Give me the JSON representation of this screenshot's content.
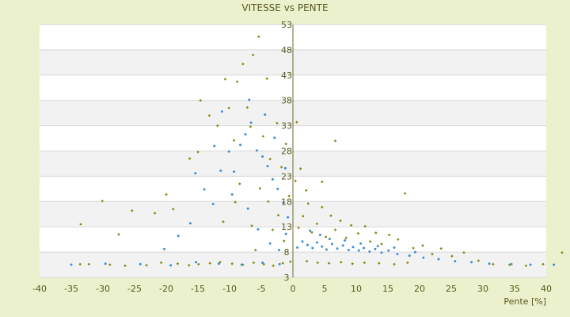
{
  "chart_data": {
    "type": "scatter",
    "title": "VITESSE vs PENTE",
    "xlabel": "Pente [%]",
    "ylabel": "",
    "xlim": [
      -40,
      40
    ],
    "ylim": [
      3,
      53
    ],
    "x_ticks": [
      -40,
      -35,
      -30,
      -25,
      -20,
      -15,
      -10,
      -5,
      0,
      5,
      10,
      15,
      20,
      25,
      30,
      35,
      40
    ],
    "y_ticks": [
      3,
      8,
      13,
      18,
      23,
      28,
      33,
      38,
      43,
      48,
      53
    ],
    "x_tick_labels": [
      "-40",
      "-35",
      "-30",
      "-25",
      "-20",
      "-15",
      "-10",
      "-5",
      "0",
      "5",
      "10",
      "15",
      "20",
      "25",
      "30",
      "35",
      "40"
    ],
    "y_tick_labels": [
      "3",
      "8",
      "13",
      "18",
      "23",
      "28",
      "33",
      "38",
      "43",
      "48",
      "53"
    ],
    "grid": true,
    "legend": "none",
    "series": [
      {
        "color": "#8b8b10",
        "marker": "diamond",
        "points": [
          [
            -33.6,
            5.6
          ],
          [
            -32.2,
            5.6
          ],
          [
            -28.9,
            5.5
          ],
          [
            -26.5,
            5.3
          ],
          [
            -23.1,
            5.4
          ],
          [
            -20.8,
            5.9
          ],
          [
            -18.2,
            5.7
          ],
          [
            -16.4,
            5.4
          ],
          [
            -14.9,
            5.6
          ],
          [
            -13.1,
            5.8
          ],
          [
            -11.5,
            6.0
          ],
          [
            -9.6,
            5.7
          ],
          [
            -7.9,
            5.5
          ],
          [
            -6.2,
            5.9
          ],
          [
            -4.6,
            5.6
          ],
          [
            -3.1,
            5.3
          ],
          [
            -1.6,
            5.8
          ],
          [
            -0.4,
            6.1
          ],
          [
            -33.5,
            13.5
          ],
          [
            -30.1,
            18.1
          ],
          [
            -27.5,
            11.5
          ],
          [
            -25.4,
            16.2
          ],
          [
            -21.8,
            15.7
          ],
          [
            -20.0,
            19.4
          ],
          [
            -18.9,
            16.5
          ],
          [
            -16.3,
            26.5
          ],
          [
            -15.0,
            27.8
          ],
          [
            -14.6,
            38.0
          ],
          [
            -13.2,
            35.0
          ],
          [
            -11.9,
            33.0
          ],
          [
            -10.7,
            42.2
          ],
          [
            -10.1,
            36.5
          ],
          [
            -9.3,
            30.1
          ],
          [
            -8.8,
            41.7
          ],
          [
            -7.9,
            45.2
          ],
          [
            -7.2,
            36.6
          ],
          [
            -6.7,
            32.8
          ],
          [
            -6.3,
            47.0
          ],
          [
            -5.4,
            50.6
          ],
          [
            -4.7,
            30.9
          ],
          [
            -4.1,
            42.3
          ],
          [
            -3.6,
            26.4
          ],
          [
            -2.5,
            33.5
          ],
          [
            -1.8,
            24.8
          ],
          [
            -1.1,
            29.4
          ],
          [
            -0.6,
            19.1
          ],
          [
            -11.0,
            14.0
          ],
          [
            -9.1,
            17.9
          ],
          [
            -8.4,
            21.5
          ],
          [
            -6.5,
            13.2
          ],
          [
            -5.2,
            20.6
          ],
          [
            -3.9,
            18.0
          ],
          [
            -2.3,
            15.3
          ],
          [
            -1.4,
            10.2
          ],
          [
            -5.9,
            8.4
          ],
          [
            -3.2,
            12.4
          ],
          [
            0.9,
            12.8
          ],
          [
            1.6,
            15.1
          ],
          [
            2.4,
            17.6
          ],
          [
            3.0,
            11.9
          ],
          [
            3.8,
            13.6
          ],
          [
            4.6,
            16.9
          ],
          [
            5.2,
            11.0
          ],
          [
            6.0,
            15.2
          ],
          [
            6.7,
            12.4
          ],
          [
            7.5,
            14.2
          ],
          [
            8.4,
            10.8
          ],
          [
            9.2,
            13.3
          ],
          [
            10.3,
            11.7
          ],
          [
            11.4,
            13.1
          ],
          [
            12.2,
            10.1
          ],
          [
            13.1,
            11.8
          ],
          [
            14.0,
            9.6
          ],
          [
            15.2,
            11.4
          ],
          [
            16.6,
            10.5
          ],
          [
            17.7,
            19.6
          ],
          [
            19.0,
            8.8
          ],
          [
            20.5,
            9.3
          ],
          [
            22.0,
            7.6
          ],
          [
            23.4,
            8.7
          ],
          [
            25.1,
            7.2
          ],
          [
            27.0,
            7.9
          ],
          [
            29.3,
            6.3
          ],
          [
            31.6,
            5.6
          ],
          [
            34.2,
            5.5
          ],
          [
            36.8,
            5.3
          ],
          [
            39.5,
            5.6
          ],
          [
            42.5,
            7.9
          ],
          [
            2.2,
            6.2
          ],
          [
            3.9,
            5.9
          ],
          [
            5.7,
            5.8
          ],
          [
            7.6,
            6.0
          ],
          [
            9.4,
            5.7
          ],
          [
            11.3,
            5.9
          ],
          [
            13.6,
            5.8
          ],
          [
            16.0,
            5.6
          ],
          [
            18.1,
            5.9
          ],
          [
            0.4,
            22.1
          ],
          [
            1.2,
            24.5
          ],
          [
            0.6,
            33.7
          ],
          [
            2.1,
            20.2
          ],
          [
            4.6,
            21.9
          ],
          [
            6.7,
            30.0
          ]
        ]
      },
      {
        "color": "#3a8fd8",
        "marker": "dot",
        "points": [
          [
            -35.0,
            5.5
          ],
          [
            -29.6,
            5.7
          ],
          [
            -24.1,
            5.6
          ],
          [
            -19.3,
            5.4
          ],
          [
            -15.3,
            6.0
          ],
          [
            -11.7,
            5.7
          ],
          [
            -8.1,
            5.5
          ],
          [
            -4.8,
            5.9
          ],
          [
            -2.1,
            5.6
          ],
          [
            -20.3,
            8.6
          ],
          [
            -18.1,
            11.2
          ],
          [
            -16.2,
            13.7
          ],
          [
            -15.4,
            23.6
          ],
          [
            -14.0,
            20.4
          ],
          [
            -12.6,
            17.5
          ],
          [
            -11.4,
            24.1
          ],
          [
            -10.1,
            27.9
          ],
          [
            -9.3,
            23.9
          ],
          [
            -8.3,
            29.2
          ],
          [
            -7.5,
            31.3
          ],
          [
            -6.6,
            33.6
          ],
          [
            -5.7,
            28.1
          ],
          [
            -4.8,
            26.9
          ],
          [
            -4.0,
            25.0
          ],
          [
            -3.2,
            22.4
          ],
          [
            -2.4,
            20.5
          ],
          [
            -1.5,
            17.8
          ],
          [
            -0.8,
            14.9
          ],
          [
            -9.6,
            19.4
          ],
          [
            -7.1,
            16.6
          ],
          [
            -5.5,
            12.5
          ],
          [
            -3.6,
            9.7
          ],
          [
            -2.2,
            8.4
          ],
          [
            -1.1,
            11.6
          ],
          [
            0.7,
            8.9
          ],
          [
            1.5,
            10.1
          ],
          [
            2.3,
            9.4
          ],
          [
            3.1,
            8.8
          ],
          [
            3.8,
            9.9
          ],
          [
            4.6,
            9.1
          ],
          [
            5.3,
            8.5
          ],
          [
            6.2,
            9.6
          ],
          [
            7.0,
            8.7
          ],
          [
            7.9,
            9.3
          ],
          [
            8.8,
            8.4
          ],
          [
            9.5,
            9.0
          ],
          [
            10.4,
            8.3
          ],
          [
            11.2,
            8.8
          ],
          [
            12.1,
            8.1
          ],
          [
            13.0,
            8.6
          ],
          [
            14.0,
            7.9
          ],
          [
            15.1,
            8.3
          ],
          [
            16.5,
            7.6
          ],
          [
            18.4,
            7.3
          ],
          [
            20.6,
            6.9
          ],
          [
            23.0,
            6.6
          ],
          [
            25.6,
            6.2
          ],
          [
            28.2,
            6.0
          ],
          [
            31.0,
            5.7
          ],
          [
            34.5,
            5.6
          ],
          [
            37.5,
            5.5
          ],
          [
            41.2,
            5.5
          ],
          [
            2.7,
            12.2
          ],
          [
            4.3,
            11.4
          ],
          [
            5.8,
            10.6
          ],
          [
            8.2,
            10.3
          ],
          [
            10.7,
            9.7
          ],
          [
            13.4,
            9.2
          ],
          [
            16.0,
            8.9
          ],
          [
            19.3,
            8.0
          ],
          [
            -12.4,
            29.0
          ],
          [
            -11.2,
            35.8
          ],
          [
            -6.9,
            38.1
          ],
          [
            -4.4,
            35.2
          ],
          [
            -2.9,
            30.6
          ],
          [
            -1.2,
            24.6
          ]
        ]
      }
    ]
  }
}
